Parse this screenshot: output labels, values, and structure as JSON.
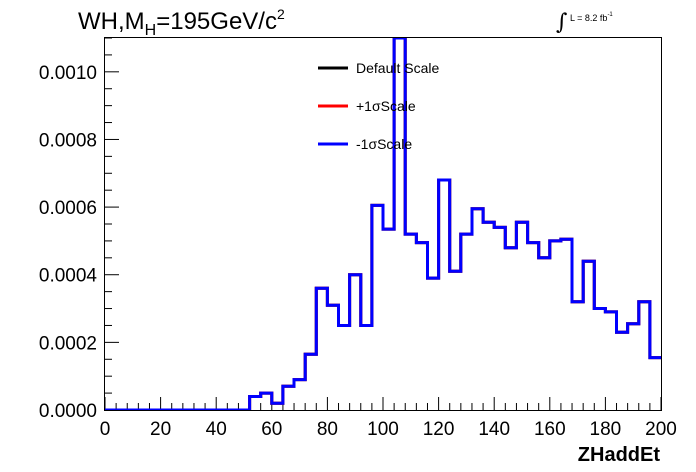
{
  "chart_data": {
    "type": "line",
    "title_main": "WH,M",
    "title_sub": "H",
    "title_rest": "=195GeV/c",
    "title_sup": "2",
    "lumi_label": "L = 8.2 fb",
    "lumi_sup": "-1",
    "xlabel": "ZHaddEt",
    "ylabel": "",
    "xlim": [
      0,
      200
    ],
    "ylim": [
      0,
      0.0011
    ],
    "x_ticks": [
      0,
      20,
      40,
      60,
      80,
      100,
      120,
      140,
      160,
      180,
      200
    ],
    "y_ticks": [
      "0.0000",
      "0.0002",
      "0.0004",
      "0.0006",
      "0.0008",
      "0.0010"
    ],
    "y_tick_values": [
      0,
      0.0002,
      0.0004,
      0.0006,
      0.0008,
      0.001
    ],
    "legend_position": "top-center",
    "bin_edges": [
      0,
      4,
      8,
      12,
      16,
      20,
      24,
      28,
      32,
      36,
      40,
      44,
      48,
      52,
      56,
      60,
      64,
      68,
      72,
      76,
      80,
      84,
      88,
      92,
      96,
      100,
      104,
      108,
      112,
      116,
      120,
      124,
      128,
      132,
      136,
      140,
      144,
      148,
      152,
      156,
      160,
      164,
      168,
      172,
      176,
      180,
      184,
      188,
      192,
      196,
      200
    ],
    "series": [
      {
        "name": "Default Scale",
        "color": "#000000",
        "values": [
          0,
          0,
          0,
          0,
          0,
          0,
          0,
          0,
          0,
          0,
          0,
          0,
          0,
          4e-05,
          5e-05,
          2e-05,
          7e-05,
          9e-05,
          0.000165,
          0.00036,
          0.00031,
          0.00025,
          0.0004,
          0.00025,
          0.000605,
          0.000535,
          0.0011,
          0.00052,
          0.000495,
          0.00039,
          0.00068,
          0.00041,
          0.00052,
          0.000595,
          0.000555,
          0.00054,
          0.00048,
          0.000555,
          0.000495,
          0.00045,
          0.0005,
          0.000505,
          0.00032,
          0.00044,
          0.0003,
          0.00029,
          0.00023,
          0.000255,
          0.00032,
          0.000155
        ]
      },
      {
        "name": "+1σScale",
        "color": "#ff0000",
        "values": [
          0,
          0,
          0,
          0,
          0,
          0,
          0,
          0,
          0,
          0,
          0,
          0,
          0,
          4e-05,
          5e-05,
          2e-05,
          7e-05,
          9e-05,
          0.000165,
          0.00036,
          0.00031,
          0.00025,
          0.0004,
          0.00025,
          0.000605,
          0.000535,
          0.0011,
          0.00052,
          0.000495,
          0.00039,
          0.00068,
          0.00041,
          0.00052,
          0.000595,
          0.000555,
          0.00054,
          0.00048,
          0.000555,
          0.000495,
          0.00045,
          0.0005,
          0.000505,
          0.00032,
          0.00044,
          0.0003,
          0.00029,
          0.00023,
          0.000255,
          0.00032,
          0.000155
        ]
      },
      {
        "name": "-1σScale",
        "color": "#0000ff",
        "values": [
          0,
          0,
          0,
          0,
          0,
          0,
          0,
          0,
          0,
          0,
          0,
          0,
          0,
          4e-05,
          5e-05,
          2e-05,
          7e-05,
          9e-05,
          0.000165,
          0.00036,
          0.00031,
          0.00025,
          0.0004,
          0.00025,
          0.000605,
          0.000535,
          0.0011,
          0.00052,
          0.000495,
          0.00039,
          0.00068,
          0.00041,
          0.00052,
          0.000595,
          0.000555,
          0.00054,
          0.00048,
          0.000555,
          0.000495,
          0.00045,
          0.0005,
          0.000505,
          0.00032,
          0.00044,
          0.0003,
          0.00029,
          0.00023,
          0.000255,
          0.00032,
          0.000155
        ]
      }
    ]
  }
}
